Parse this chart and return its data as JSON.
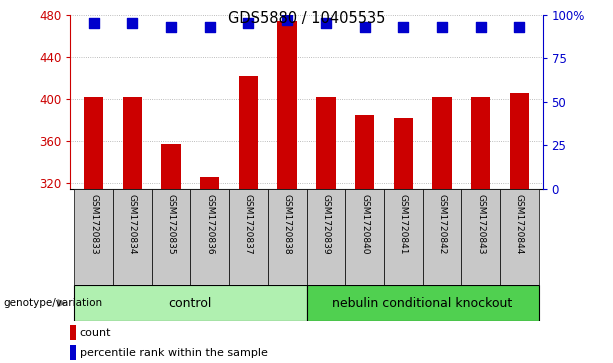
{
  "title": "GDS5880 / 10405535",
  "samples": [
    "GSM1720833",
    "GSM1720834",
    "GSM1720835",
    "GSM1720836",
    "GSM1720837",
    "GSM1720838",
    "GSM1720839",
    "GSM1720840",
    "GSM1720841",
    "GSM1720842",
    "GSM1720843",
    "GSM1720844"
  ],
  "counts": [
    402,
    402,
    357,
    326,
    422,
    474,
    402,
    385,
    382,
    402,
    402,
    406
  ],
  "percentiles": [
    95,
    95,
    93,
    93,
    95,
    97,
    95,
    93,
    93,
    93,
    93,
    93
  ],
  "ylim_left": [
    315,
    480
  ],
  "ylim_right": [
    0,
    100
  ],
  "yticks_left": [
    320,
    360,
    400,
    440,
    480
  ],
  "yticks_right": [
    0,
    25,
    50,
    75,
    100
  ],
  "yticklabels_right": [
    "0",
    "25",
    "50",
    "75",
    "100%"
  ],
  "bar_color": "#cc0000",
  "dot_color": "#0000cc",
  "bar_width": 0.5,
  "dot_size": 45,
  "group_label_prefix": "genotype/variation",
  "grid_color": "#000000",
  "grid_alpha": 0.35,
  "tick_area_color": "#c8c8c8",
  "control_color": "#b0f0b0",
  "ko_color": "#50d050",
  "legend_items": [
    {
      "label": "count",
      "color": "#cc0000"
    },
    {
      "label": "percentile rank within the sample",
      "color": "#0000cc"
    }
  ]
}
